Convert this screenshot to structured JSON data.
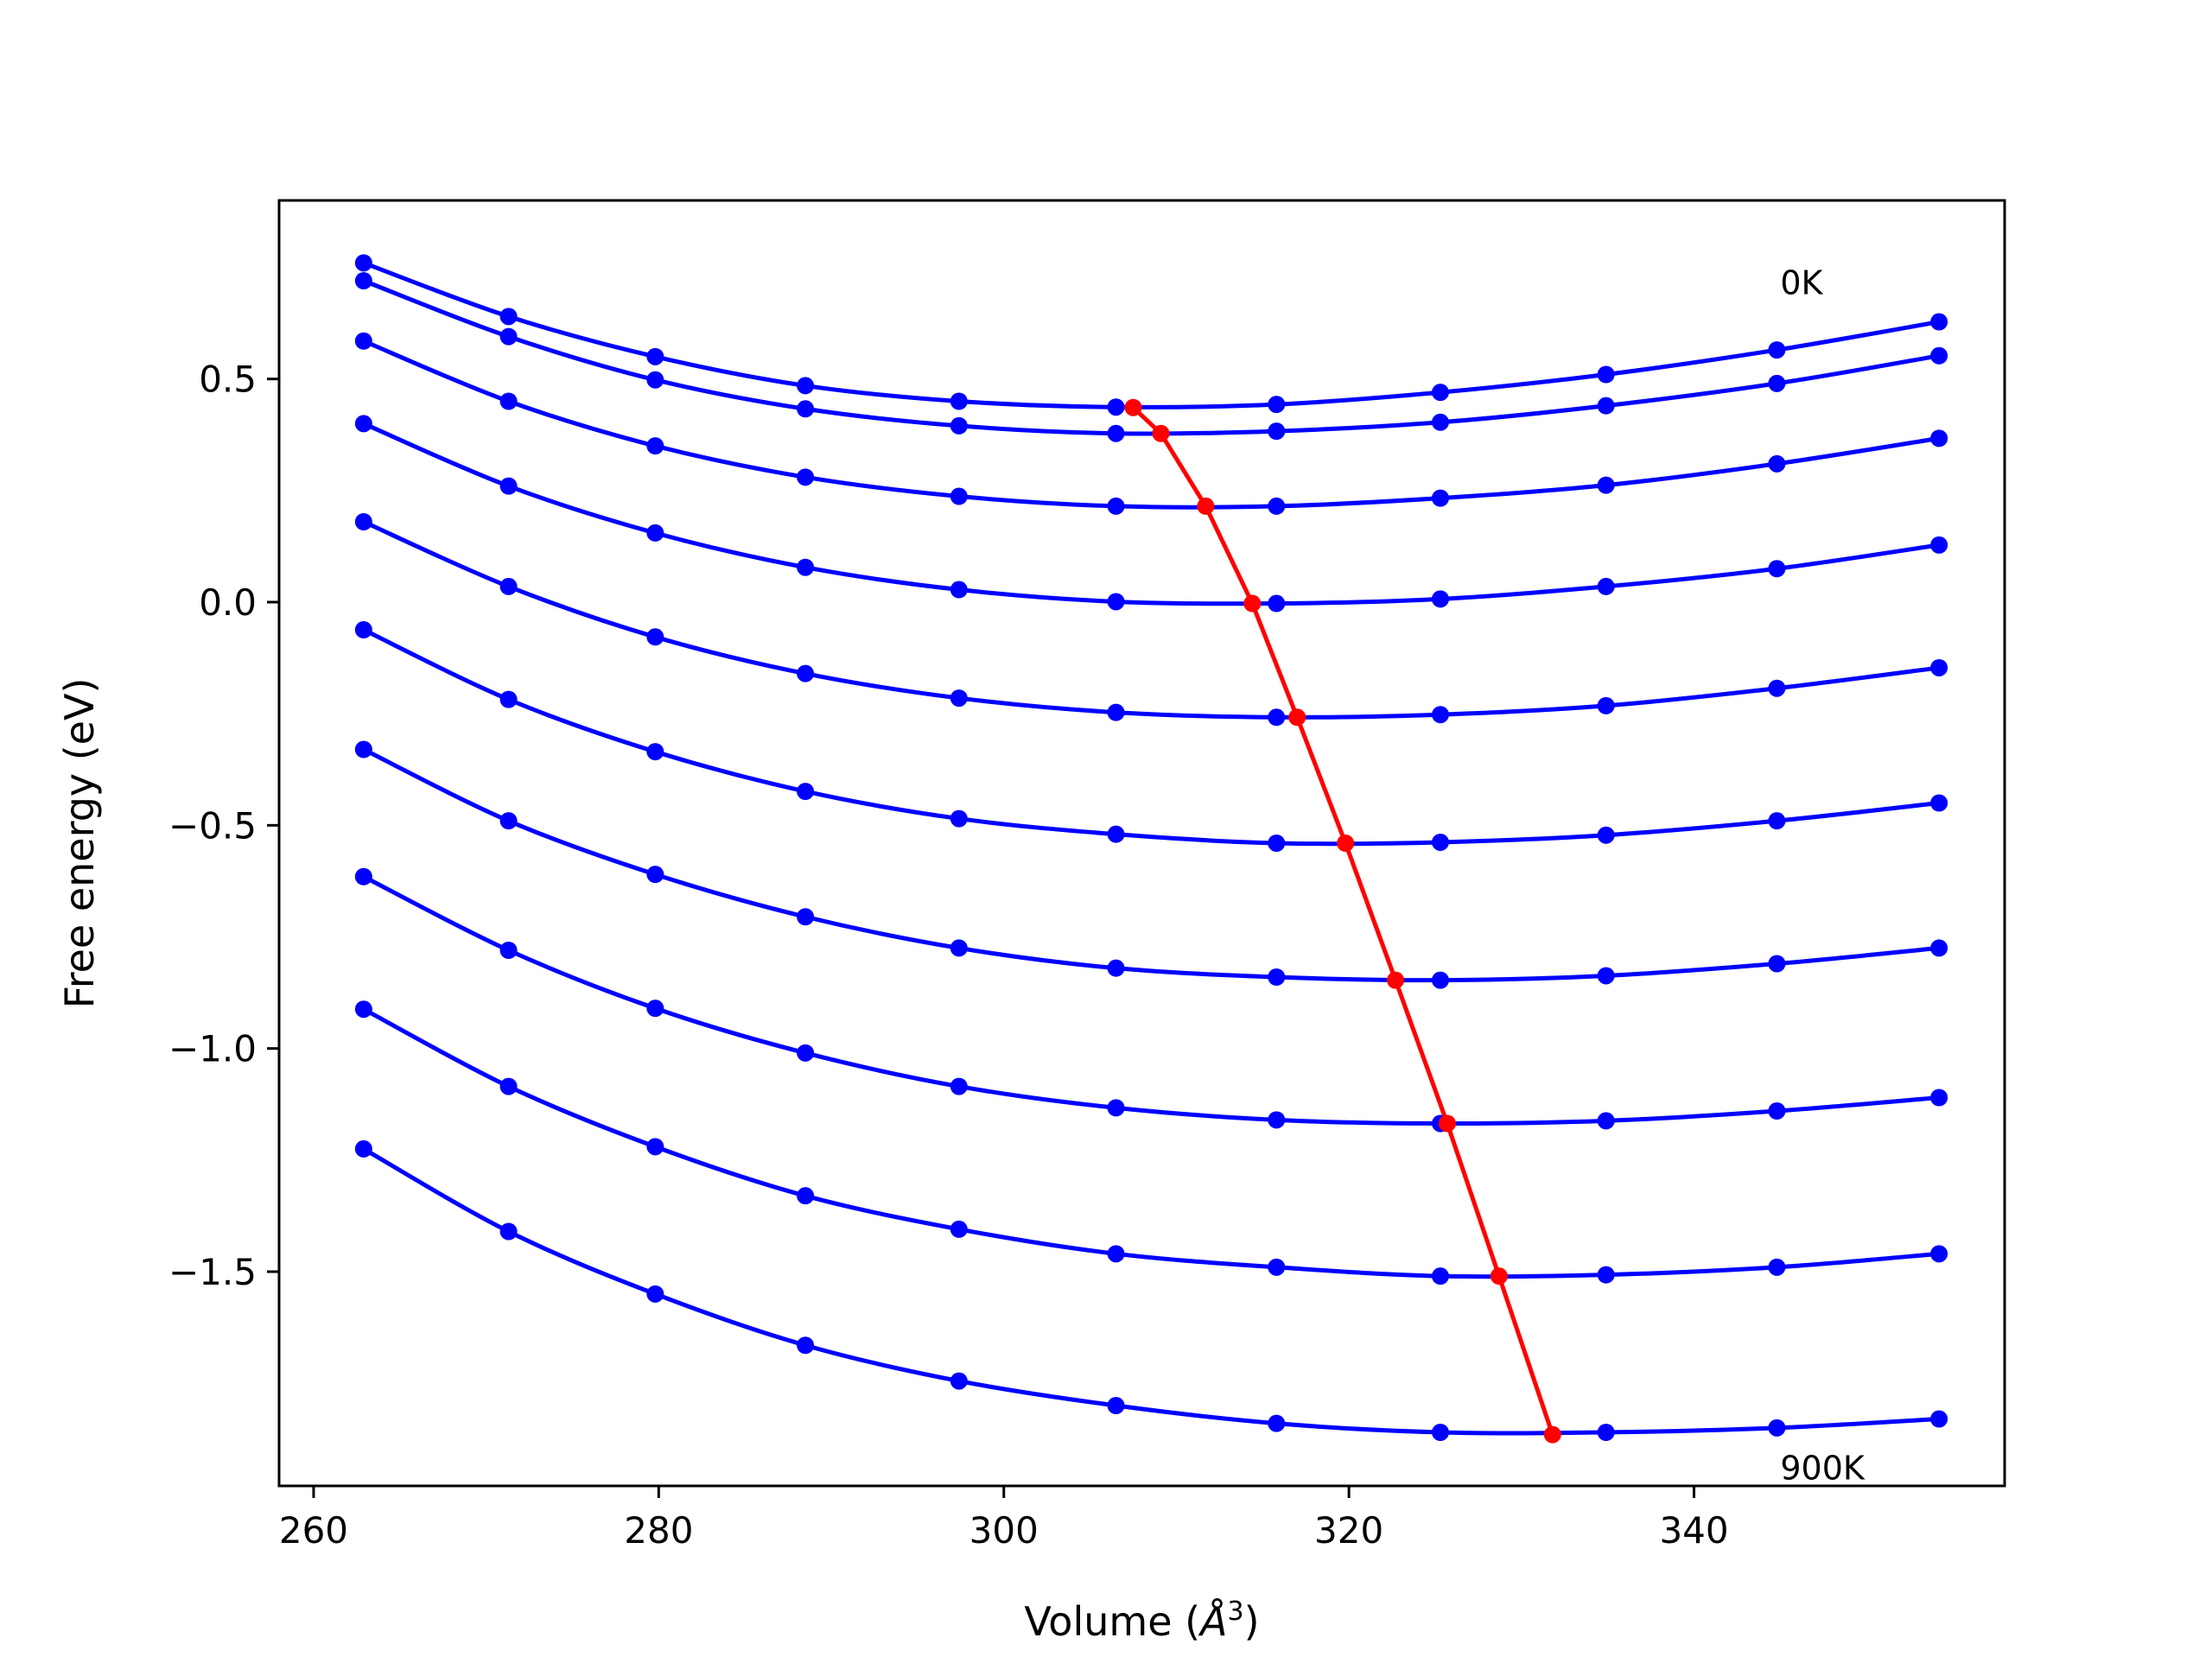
{
  "chart_data": {
    "type": "line",
    "xlabel": "Volume (",
    "xlabel_unit": "Å",
    "xlabel_exp": "3",
    "xlabel_close": ")",
    "ylabel": "Free energy (eV)",
    "xlim": [
      258,
      358
    ],
    "ylim": [
      -1.98,
      0.9
    ],
    "xticks": [
      260,
      280,
      300,
      320,
      340
    ],
    "xtick_labels": [
      "260",
      "280",
      "300",
      "320",
      "340"
    ],
    "yticks": [
      -1.5,
      -1.0,
      -0.5,
      0.0,
      0.5
    ],
    "ytick_labels": [
      "−1.5",
      "−1.0",
      "−0.5",
      "0.0",
      "0.5"
    ],
    "grid": false,
    "annotations": [
      {
        "text": "0K",
        "x": 345,
        "y": 0.69
      },
      {
        "text": "900K",
        "x": 345,
        "y": -1.965
      }
    ],
    "colors": {
      "curves": "#0000ff",
      "minimum_line": "#ff0000",
      "axes": "#000000"
    },
    "x": [
      262.9,
      271.3,
      279.8,
      288.5,
      297.4,
      306.5,
      315.8,
      325.3,
      334.9,
      344.8,
      354.2
    ],
    "series": [
      {
        "values": [
          0.76,
          0.64,
          0.55,
          0.485,
          0.45,
          0.437,
          0.443,
          0.47,
          0.51,
          0.565,
          0.628
        ]
      },
      {
        "values": [
          0.72,
          0.595,
          0.498,
          0.433,
          0.395,
          0.378,
          0.383,
          0.403,
          0.44,
          0.49,
          0.552
        ]
      },
      {
        "values": [
          0.585,
          0.45,
          0.35,
          0.28,
          0.237,
          0.215,
          0.215,
          0.233,
          0.262,
          0.31,
          0.367
        ]
      },
      {
        "values": [
          0.4,
          0.26,
          0.155,
          0.078,
          0.028,
          0.001,
          -0.003,
          0.007,
          0.035,
          0.075,
          0.128
        ]
      },
      {
        "values": [
          0.18,
          0.035,
          -0.078,
          -0.16,
          -0.215,
          -0.247,
          -0.258,
          -0.252,
          -0.232,
          -0.193,
          -0.147
        ]
      },
      {
        "values": [
          -0.062,
          -0.218,
          -0.335,
          -0.424,
          -0.485,
          -0.52,
          -0.54,
          -0.538,
          -0.522,
          -0.49,
          -0.45
        ]
      },
      {
        "values": [
          -0.33,
          -0.49,
          -0.61,
          -0.705,
          -0.775,
          -0.82,
          -0.84,
          -0.847,
          -0.837,
          -0.81,
          -0.775
        ]
      },
      {
        "values": [
          -0.615,
          -0.78,
          -0.91,
          -1.01,
          -1.085,
          -1.133,
          -1.16,
          -1.168,
          -1.162,
          -1.14,
          -1.11
        ]
      },
      {
        "values": [
          -0.912,
          -1.085,
          -1.22,
          -1.33,
          -1.405,
          -1.46,
          -1.49,
          -1.51,
          -1.507,
          -1.49,
          -1.46
        ]
      },
      {
        "values": [
          -1.225,
          -1.41,
          -1.55,
          -1.665,
          -1.745,
          -1.8,
          -1.84,
          -1.86,
          -1.86,
          -1.85,
          -1.83
        ]
      }
    ],
    "minimum_path": {
      "x": [
        307.5,
        309.1,
        311.7,
        314.4,
        317.0,
        319.8,
        322.7,
        325.7,
        328.7,
        331.8
      ],
      "y": [
        0.436,
        0.378,
        0.215,
        -0.003,
        -0.258,
        -0.54,
        -0.847,
        -1.168,
        -1.51,
        -1.865
      ]
    }
  }
}
